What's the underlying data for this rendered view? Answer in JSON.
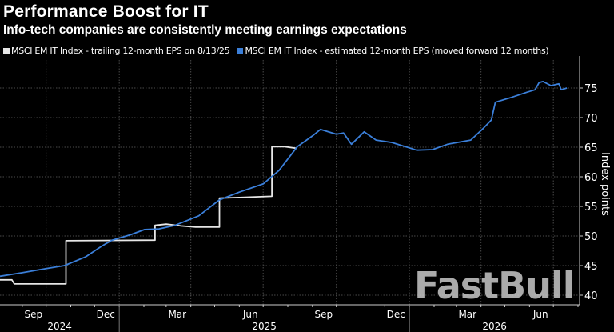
{
  "chart_data": {
    "type": "line",
    "title": "Performance Boost for IT",
    "subtitle": "Info-tech companies are consistently meeting earnings expectations",
    "ylabel": "Index points",
    "ylim": [
      38.5,
      78
    ],
    "yticks": [
      40,
      45,
      50,
      55,
      60,
      65,
      70,
      75
    ],
    "xlim": [
      "2024-08-04",
      "2026-08-03"
    ],
    "xticks": [
      {
        "label": "Sep",
        "date": "2024-09-15"
      },
      {
        "label": "Dec",
        "date": "2024-12-15"
      },
      {
        "label": "Mar",
        "date": "2025-03-15"
      },
      {
        "label": "Jun",
        "date": "2025-06-15"
      },
      {
        "label": "Sep",
        "date": "2025-09-15"
      },
      {
        "label": "Dec",
        "date": "2025-12-15"
      },
      {
        "label": "Mar",
        "date": "2026-03-15"
      },
      {
        "label": "Jun",
        "date": "2026-06-15"
      }
    ],
    "years": [
      {
        "label": "2024",
        "start": "2024-08-04",
        "end": "2025-01-01"
      },
      {
        "label": "2025",
        "start": "2025-01-01",
        "end": "2026-01-01"
      },
      {
        "label": "2026",
        "start": "2026-01-01",
        "end": "2026-08-03"
      }
    ],
    "grid": true,
    "legend_position": "top-left",
    "series": [
      {
        "name": "MSCI EM IT Index - trailing 12-month EPS on 8/13/25",
        "color": "#e6e6e6",
        "points": [
          [
            "2024-08-04",
            42.6
          ],
          [
            "2024-08-19",
            42.6
          ],
          [
            "2024-08-22",
            41.9
          ],
          [
            "2024-10-26",
            41.9
          ],
          [
            "2024-10-26",
            49.2
          ],
          [
            "2025-02-15",
            49.3
          ],
          [
            "2025-02-15",
            51.8
          ],
          [
            "2025-03-01",
            52.0
          ],
          [
            "2025-03-20",
            51.7
          ],
          [
            "2025-04-07",
            51.5
          ],
          [
            "2025-04-07",
            51.5
          ],
          [
            "2025-05-07",
            51.5
          ],
          [
            "2025-05-07",
            56.4
          ],
          [
            "2025-06-01",
            56.5
          ],
          [
            "2025-07-12",
            56.7
          ],
          [
            "2025-07-12",
            65.1
          ],
          [
            "2025-07-28",
            65.1
          ],
          [
            "2025-08-13",
            64.8
          ]
        ]
      },
      {
        "name": "MSCI EM IT Index - estimated 12-month EPS (moved forward 12 months)",
        "color": "#3b7fd9",
        "points": [
          [
            "2024-08-04",
            43.2
          ],
          [
            "2024-09-01",
            43.8
          ],
          [
            "2024-10-01",
            44.5
          ],
          [
            "2024-10-24",
            45.0
          ],
          [
            "2024-11-20",
            46.5
          ],
          [
            "2024-12-10",
            48.3
          ],
          [
            "2024-12-23",
            49.3
          ],
          [
            "2025-01-15",
            50.2
          ],
          [
            "2025-02-02",
            51.1
          ],
          [
            "2025-02-20",
            51.2
          ],
          [
            "2025-03-12",
            51.8
          ],
          [
            "2025-04-11",
            53.4
          ],
          [
            "2025-05-07",
            56.1
          ],
          [
            "2025-06-01",
            57.4
          ],
          [
            "2025-07-01",
            58.8
          ],
          [
            "2025-07-21",
            61.1
          ],
          [
            "2025-08-13",
            65.1
          ],
          [
            "2025-09-01",
            66.9
          ],
          [
            "2025-09-11",
            68.0
          ],
          [
            "2025-10-01",
            67.2
          ],
          [
            "2025-10-10",
            67.4
          ],
          [
            "2025-10-20",
            65.5
          ],
          [
            "2025-11-05",
            67.6
          ],
          [
            "2025-11-20",
            66.2
          ],
          [
            "2025-12-10",
            65.8
          ],
          [
            "2026-01-10",
            64.5
          ],
          [
            "2026-01-30",
            64.6
          ],
          [
            "2026-02-18",
            65.5
          ],
          [
            "2026-03-19",
            66.2
          ],
          [
            "2026-04-04",
            68.2
          ],
          [
            "2026-04-14",
            69.6
          ],
          [
            "2026-04-19",
            72.6
          ],
          [
            "2026-05-09",
            73.4
          ],
          [
            "2026-05-29",
            74.3
          ],
          [
            "2026-06-08",
            74.7
          ],
          [
            "2026-06-13",
            75.9
          ],
          [
            "2026-06-18",
            76.1
          ],
          [
            "2026-06-28",
            75.4
          ],
          [
            "2026-07-08",
            75.7
          ],
          [
            "2026-07-11",
            74.7
          ],
          [
            "2026-07-18",
            75.0
          ]
        ]
      }
    ]
  },
  "watermark": "FastBull"
}
